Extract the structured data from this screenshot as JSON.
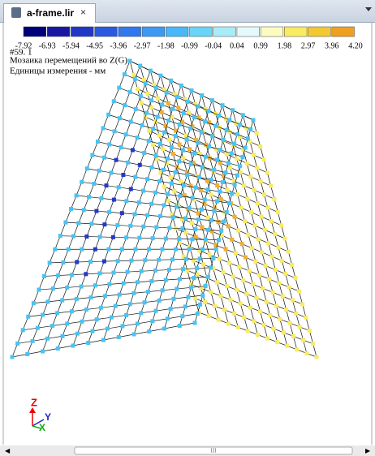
{
  "tab": {
    "title": "a-frame.lir",
    "close": "×"
  },
  "legend": {
    "colors": [
      "#00007a",
      "#1818a0",
      "#2038c8",
      "#2a58e0",
      "#3078ee",
      "#3c98f4",
      "#48b8f8",
      "#68d4f8",
      "#a8ecf8",
      "#e4fafa",
      "#fcfcc0",
      "#f8ec60",
      "#f4c830",
      "#f0a020"
    ],
    "labels": [
      "-7.92",
      "-6.93",
      "-5.94",
      "-4.95",
      "-3.96",
      "-2.97",
      "-1.98",
      "-0.99",
      "-0.04",
      "0.04",
      "0.99",
      "1.98",
      "2.97",
      "3.96",
      "4.20"
    ]
  },
  "info": {
    "id": "#59. 1",
    "title": "Мозаика перемещений во Z(G)",
    "units": "Единицы измерения - мм"
  },
  "axes": {
    "z": "Z",
    "y": "Y",
    "x": "X"
  },
  "scrollbar": {
    "thumb": "III"
  }
}
